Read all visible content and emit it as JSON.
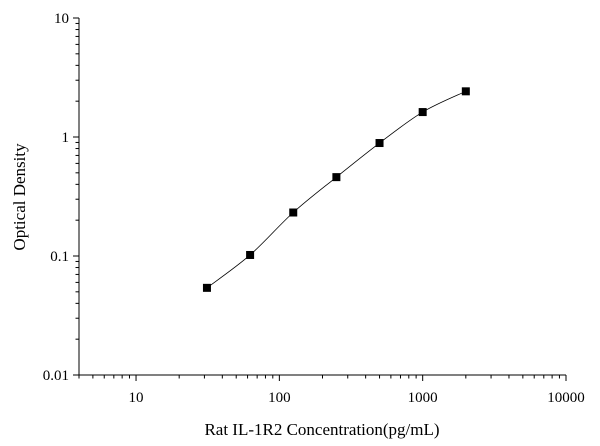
{
  "chart_data": {
    "type": "scatter",
    "title": "",
    "xlabel": "Rat IL-1R2 Concentration(pg/mL)",
    "ylabel": "Optical Density",
    "xscale": "log",
    "yscale": "log",
    "xlim": [
      4,
      10000
    ],
    "ylim": [
      0.01,
      10
    ],
    "xticks": [
      10,
      100,
      1000,
      10000
    ],
    "xtick_labels": [
      "10",
      "100",
      "1000",
      "10000"
    ],
    "yticks": [
      0.01,
      0.1,
      1,
      10
    ],
    "ytick_labels": [
      "0.01",
      "0.1",
      "1",
      "10"
    ],
    "grid": false,
    "legend": "none",
    "series": [
      {
        "marker": "square",
        "color": "#000000",
        "line": "smoothed",
        "x": [
          31.25,
          62.5,
          125,
          250,
          500,
          1000,
          2000
        ],
        "y": [
          0.054,
          0.102,
          0.232,
          0.46,
          0.89,
          1.62,
          2.42
        ]
      }
    ]
  }
}
